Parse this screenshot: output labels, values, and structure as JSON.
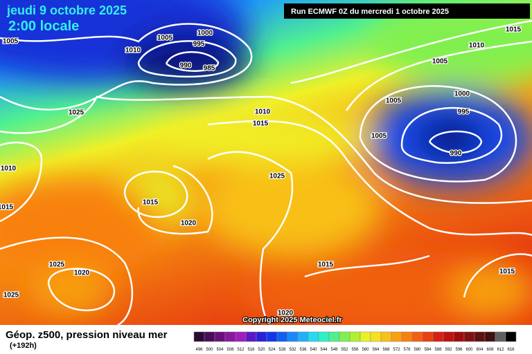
{
  "header": {
    "date": "jeudi 9 octobre 2025",
    "time": "2:00 locale",
    "run": "Run ECMWF 0Z du mercredi 1 octobre 2025"
  },
  "copyright": "Copyright 2025 Meteociel.fr",
  "footer": {
    "title": "Géop. z500, pression niveau mer",
    "lead": "(+192h)"
  },
  "isobar_labels": [
    "1005",
    "1005",
    "1000",
    "995",
    "1010",
    "990",
    "985",
    "1025",
    "1010",
    "1015",
    "1025",
    "1010",
    "1015",
    "1020",
    "1015",
    "1025",
    "1020",
    "1025",
    "1015",
    "1020",
    "1015",
    "1010",
    "1005",
    "1005",
    "1000",
    "995",
    "990",
    "1005",
    "1015"
  ],
  "legend": {
    "labels": [
      496,
      500,
      504,
      508,
      512,
      516,
      520,
      524,
      528,
      532,
      536,
      540,
      544,
      548,
      552,
      556,
      560,
      564,
      568,
      572,
      576,
      580,
      584,
      588,
      592,
      596,
      600,
      604,
      608,
      612,
      616
    ],
    "colors": [
      "#2a0a35",
      "#4a0c58",
      "#6a0f7c",
      "#8a16a0",
      "#a01cc0",
      "#5a18c8",
      "#2a20d8",
      "#1038e8",
      "#1060f0",
      "#1888f8",
      "#20b0f8",
      "#28d8f0",
      "#30f0c8",
      "#50f090",
      "#80f050",
      "#b0f030",
      "#e8f028",
      "#f8e020",
      "#f8c018",
      "#f8a010",
      "#f88010",
      "#f06010",
      "#e84010",
      "#d82010",
      "#c01010",
      "#a00c0c",
      "#801010",
      "#601010",
      "#401010",
      "#606060",
      "#000000"
    ]
  }
}
